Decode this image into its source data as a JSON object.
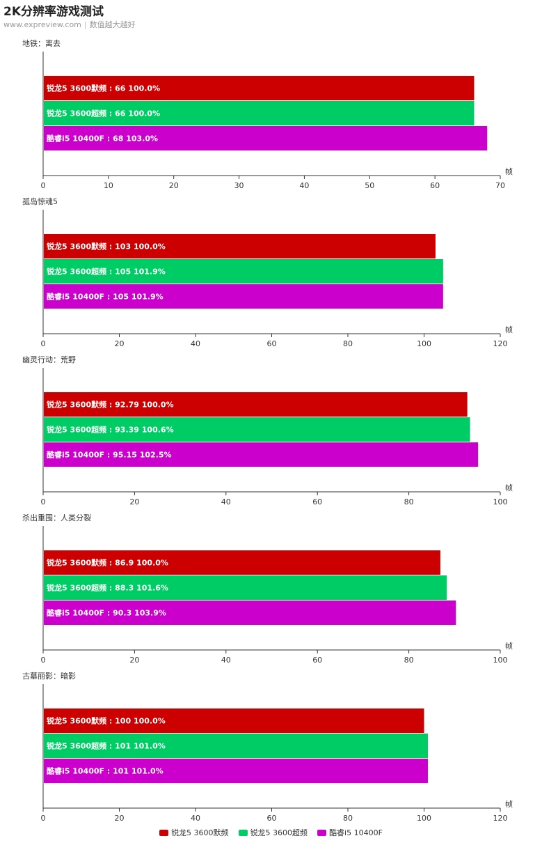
{
  "header": {
    "title": "2K分辨率游戏测试",
    "site": "www.expreview.com",
    "note": "数值越大越好"
  },
  "legend": [
    {
      "name": "锐龙5 3600默频",
      "color": "#cc0000"
    },
    {
      "name": "锐龙5 3600超频",
      "color": "#00cc66"
    },
    {
      "name": "酷睿i5 10400F",
      "color": "#cc00cc"
    }
  ],
  "chart_data": [
    {
      "type": "bar",
      "orientation": "horizontal",
      "title": "地铁：离去",
      "xlabel": "帧",
      "xlim": [
        0,
        70
      ],
      "xticks": [
        0,
        10,
        20,
        30,
        40,
        50,
        60,
        70
      ],
      "bars": [
        {
          "series": "锐龙5 3600默频",
          "value": 66,
          "pct": "100.0%",
          "color": "#cc0000"
        },
        {
          "series": "锐龙5 3600超频",
          "value": 66,
          "pct": "100.0%",
          "color": "#00cc66"
        },
        {
          "series": "酷睿i5 10400F",
          "value": 68,
          "pct": "103.0%",
          "color": "#cc00cc"
        }
      ]
    },
    {
      "type": "bar",
      "orientation": "horizontal",
      "title": "孤岛惊魂5",
      "xlabel": "帧",
      "xlim": [
        0,
        120
      ],
      "xticks": [
        0,
        20,
        40,
        60,
        80,
        100,
        120
      ],
      "bars": [
        {
          "series": "锐龙5 3600默频",
          "value": 103,
          "pct": "100.0%",
          "color": "#cc0000"
        },
        {
          "series": "锐龙5 3600超频",
          "value": 105,
          "pct": "101.9%",
          "color": "#00cc66"
        },
        {
          "series": "酷睿i5 10400F",
          "value": 105,
          "pct": "101.9%",
          "color": "#cc00cc"
        }
      ]
    },
    {
      "type": "bar",
      "orientation": "horizontal",
      "title": "幽灵行动：荒野",
      "xlabel": "帧",
      "xlim": [
        0,
        100
      ],
      "xticks": [
        0,
        20,
        40,
        60,
        80,
        100
      ],
      "bars": [
        {
          "series": "锐龙5 3600默频",
          "value": 92.79,
          "pct": "100.0%",
          "color": "#cc0000"
        },
        {
          "series": "锐龙5 3600超频",
          "value": 93.39,
          "pct": "100.6%",
          "color": "#00cc66"
        },
        {
          "series": "酷睿i5 10400F",
          "value": 95.15,
          "pct": "102.5%",
          "color": "#cc00cc"
        }
      ]
    },
    {
      "type": "bar",
      "orientation": "horizontal",
      "title": "杀出重围：人类分裂",
      "xlabel": "帧",
      "xlim": [
        0,
        100
      ],
      "xticks": [
        0,
        20,
        40,
        60,
        80,
        100
      ],
      "bars": [
        {
          "series": "锐龙5 3600默频",
          "value": 86.9,
          "pct": "100.0%",
          "color": "#cc0000"
        },
        {
          "series": "锐龙5 3600超频",
          "value": 88.3,
          "pct": "101.6%",
          "color": "#00cc66"
        },
        {
          "series": "酷睿i5 10400F",
          "value": 90.3,
          "pct": "103.9%",
          "color": "#cc00cc"
        }
      ]
    },
    {
      "type": "bar",
      "orientation": "horizontal",
      "title": "古墓丽影：暗影",
      "xlabel": "帧",
      "xlim": [
        0,
        120
      ],
      "xticks": [
        0,
        20,
        40,
        60,
        80,
        100,
        120
      ],
      "bars": [
        {
          "series": "锐龙5 3600默频",
          "value": 100,
          "pct": "100.0%",
          "color": "#cc0000"
        },
        {
          "series": "锐龙5 3600超频",
          "value": 101,
          "pct": "101.0%",
          "color": "#00cc66"
        },
        {
          "series": "酷睿i5 10400F",
          "value": 101,
          "pct": "101.0%",
          "color": "#cc00cc"
        }
      ]
    }
  ]
}
